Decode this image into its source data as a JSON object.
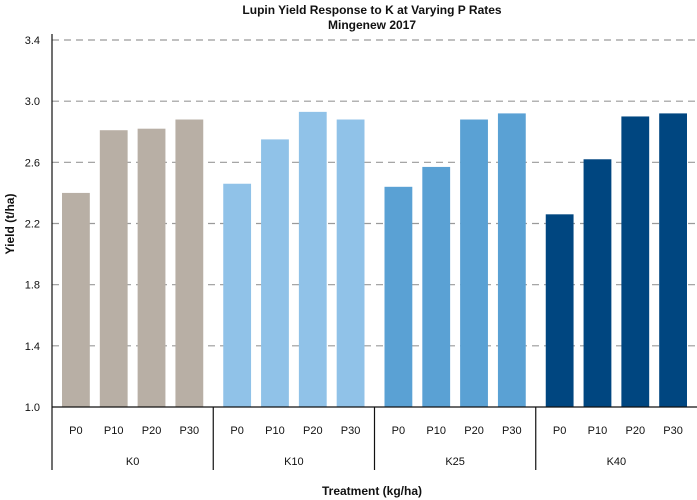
{
  "chart_data": {
    "type": "bar",
    "title": "Lupin Yield Response to K at Varying P Rates",
    "subtitle": "Mingenew 2017",
    "xlabel": "Treatment (kg/ha)",
    "ylabel": "Yield (t/ha)",
    "ylim": [
      1.0,
      3.4
    ],
    "yticks": [
      "1.0",
      "1.4",
      "1.8",
      "2.2",
      "2.6",
      "3.0",
      "3.4"
    ],
    "ytick_values": [
      1.0,
      1.4,
      1.8,
      2.2,
      2.6,
      3.0,
      3.4
    ],
    "grid": true,
    "groups": [
      {
        "name": "K0",
        "color": "#b8afa5",
        "categories": [
          "P0",
          "P10",
          "P20",
          "P30"
        ],
        "values": [
          2.4,
          2.81,
          2.82,
          2.88
        ]
      },
      {
        "name": "K10",
        "color": "#90c2e8",
        "categories": [
          "P0",
          "P10",
          "P20",
          "P30"
        ],
        "values": [
          2.46,
          2.75,
          2.93,
          2.88
        ]
      },
      {
        "name": "K25",
        "color": "#5aa1d4",
        "categories": [
          "P0",
          "P10",
          "P20",
          "P30"
        ],
        "values": [
          2.44,
          2.57,
          2.88,
          2.92
        ]
      },
      {
        "name": "K40",
        "color": "#004680",
        "categories": [
          "P0",
          "P10",
          "P20",
          "P30"
        ],
        "values": [
          2.26,
          2.62,
          2.9,
          2.92
        ]
      }
    ]
  }
}
